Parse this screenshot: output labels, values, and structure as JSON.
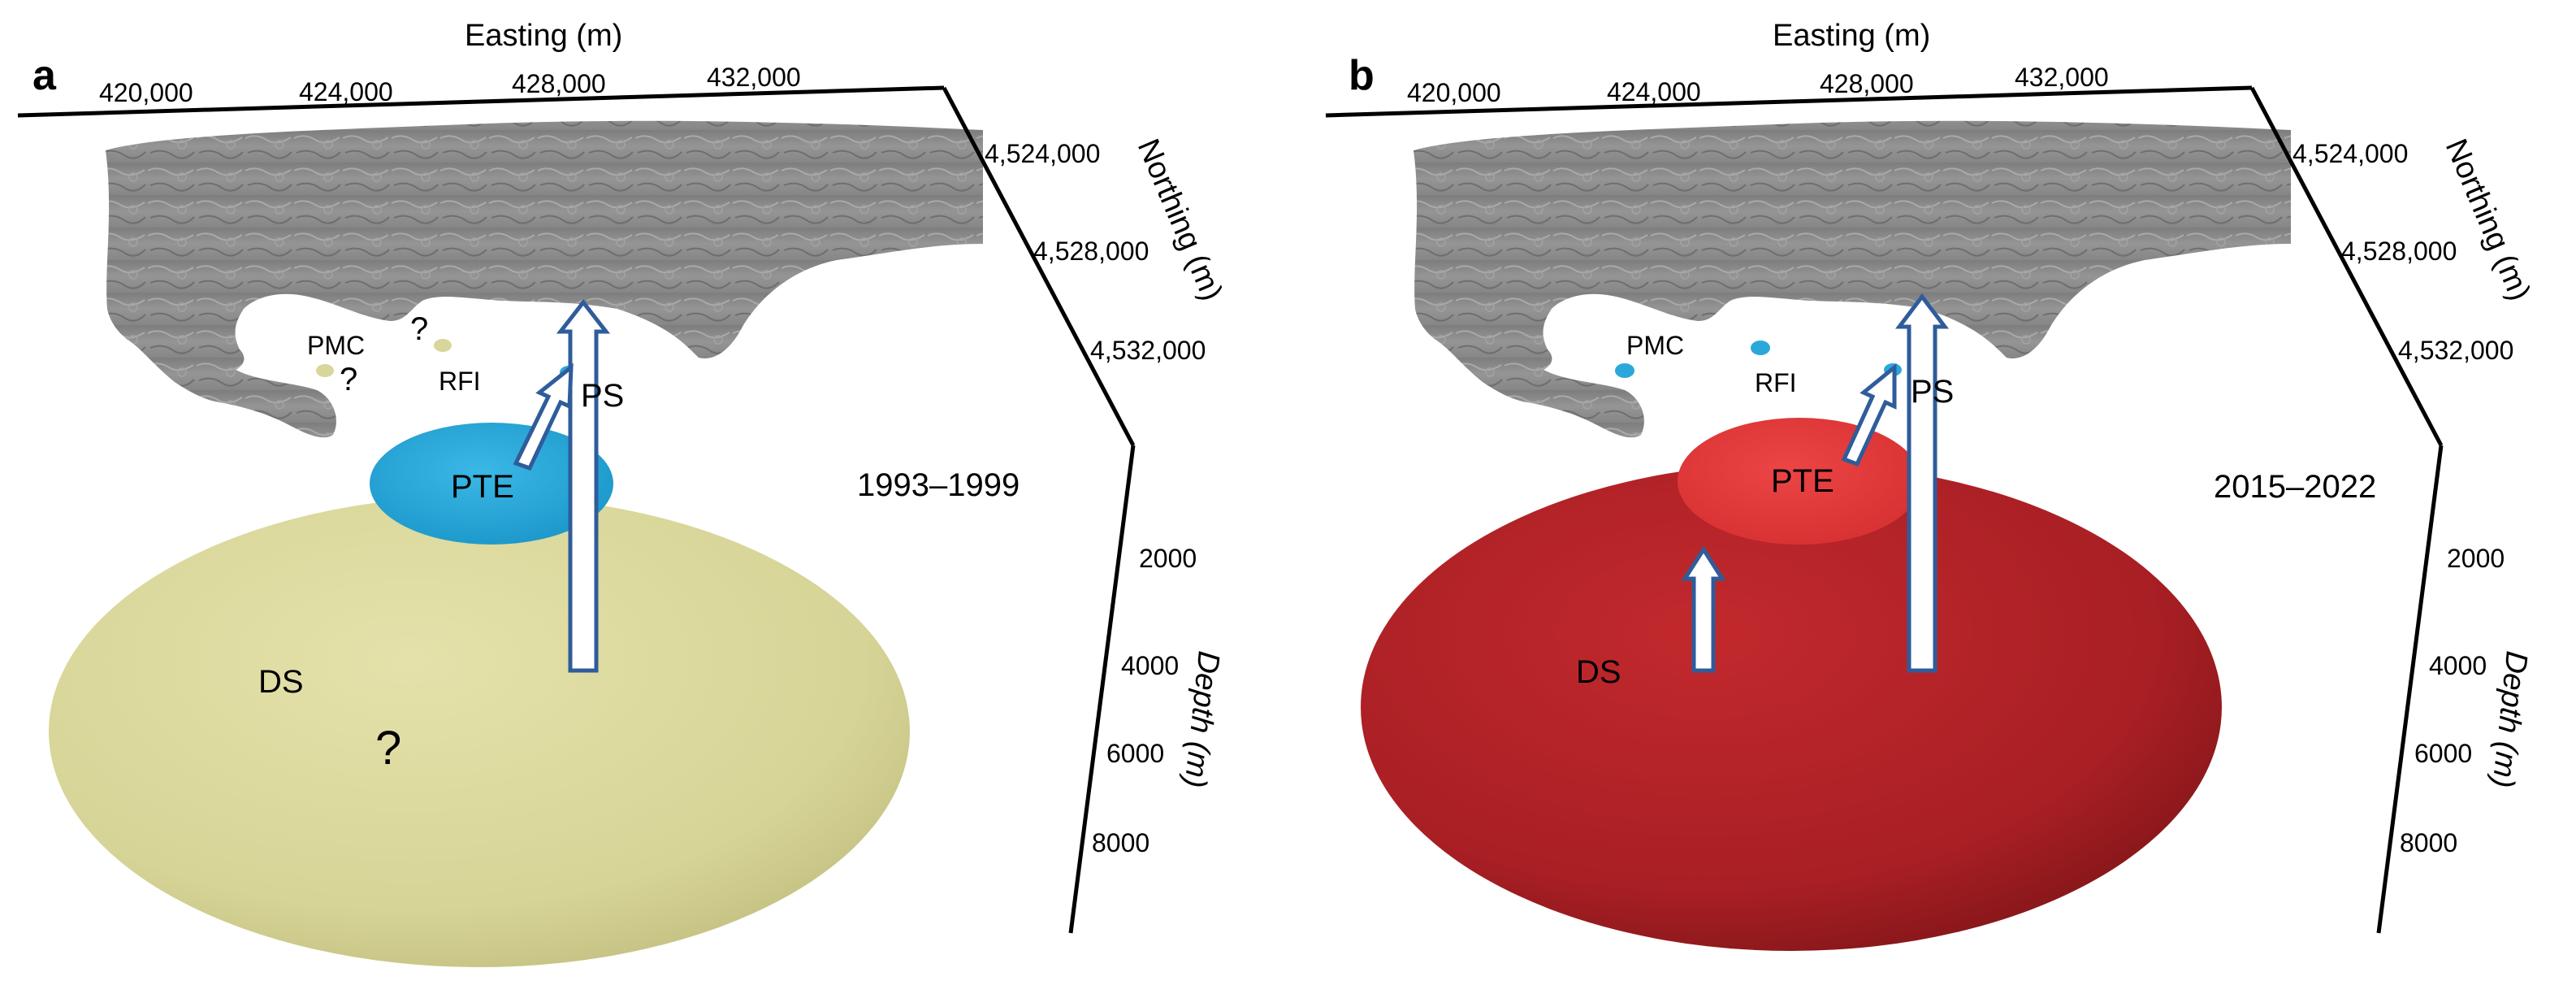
{
  "panels": [
    {
      "letter": "a",
      "period": "1993–1999",
      "deep_source": {
        "label": "DS",
        "question": "?",
        "color": "#d8d69a"
      },
      "shallow_source": {
        "label": "PTE",
        "color": "#2ba8da"
      },
      "surface": {
        "ps_label": "PS",
        "ps_color": "#2ba8da",
        "pmc_label": "PMC",
        "pmc_question": "?",
        "pmc_color": "#d8d69a",
        "rfi_label": "RFI",
        "rfi_question": "?",
        "rfi_color": "#d8d69a"
      }
    },
    {
      "letter": "b",
      "period": "2015–2022",
      "deep_source": {
        "label": "DS",
        "question": "",
        "color": "#b02428"
      },
      "shallow_source": {
        "label": "PTE",
        "color": "#e03a3a"
      },
      "surface": {
        "ps_label": "PS",
        "ps_color": "#2ba8da",
        "pmc_label": "PMC",
        "pmc_question": "",
        "pmc_color": "#2ba8da",
        "rfi_label": "RFI",
        "rfi_question": "",
        "rfi_color": "#2ba8da"
      }
    }
  ],
  "axes": {
    "easting_title": "Easting (m)",
    "easting_ticks": [
      "420,000",
      "424,000",
      "428,000",
      "432,000"
    ],
    "northing_title": "Northing (m)",
    "northing_ticks": [
      "4,524,000",
      "4,528,000",
      "4,532,000"
    ],
    "depth_title": "Depth (m)",
    "depth_ticks": [
      "2000",
      "4000",
      "6000",
      "8000"
    ]
  },
  "colors": {
    "arrow": "#2f5c9a",
    "terrain": "#8a8a8a"
  }
}
